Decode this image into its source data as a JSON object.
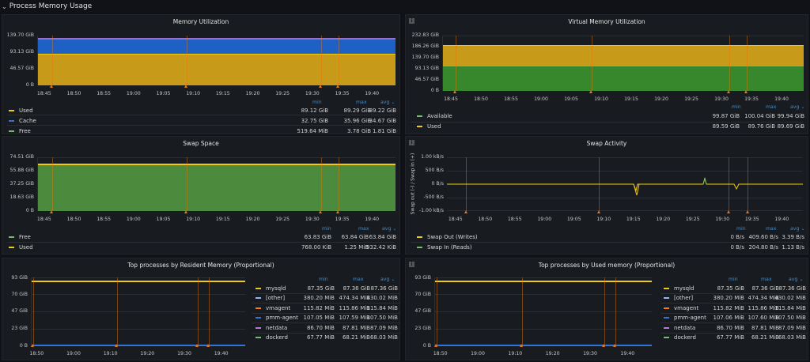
{
  "row": {
    "title": "Process Memory Usage"
  },
  "colors": {
    "green": "#73bf69",
    "yellow": "#f2cc0c",
    "blue": "#3274d9",
    "orange": "#ff780a",
    "darkgreen": "#37872d",
    "red": "#f2495c",
    "purple": "#b877d9",
    "annotation": "#e87511"
  },
  "panels": {
    "mem_util": {
      "title": "Memory Utilization",
      "yticks": [
        "139.70 GiB",
        "93.13 GiB",
        "46.57 GiB",
        "0 B"
      ],
      "xticks": [
        "18:45",
        "18:50",
        "18:55",
        "19:00",
        "19:05",
        "19:10",
        "19:15",
        "19:20",
        "19:25",
        "19:30",
        "19:35",
        "19:40"
      ],
      "legend_headers": [
        "min",
        "max",
        "avg ⌄"
      ],
      "legend": [
        {
          "name": "Used",
          "min": "89.12 GiB",
          "max": "89.29 GiB",
          "avg": "89.22 GiB"
        },
        {
          "name": "Cache",
          "min": "32.75 GiB",
          "max": "35.96 GiB",
          "avg": "34.67 GiB"
        },
        {
          "name": "Free",
          "min": "519.64 MiB",
          "max": "3.78 GiB",
          "avg": "1.81 GiB"
        }
      ]
    },
    "virt_util": {
      "title": "Virtual Memory Utilization",
      "yticks": [
        "232.83 GiB",
        "186.26 GiB",
        "139.70 GiB",
        "93.13 GiB",
        "46.57 GiB",
        "0 B"
      ],
      "xticks": [
        "18:45",
        "18:50",
        "18:55",
        "19:00",
        "19:05",
        "19:10",
        "19:15",
        "19:20",
        "19:25",
        "19:30",
        "19:35",
        "19:40"
      ],
      "legend_headers": [
        "min",
        "max",
        "avg ⌄"
      ],
      "legend": [
        {
          "name": "Available",
          "min": "99.87 GiB",
          "max": "100.04 GiB",
          "avg": "99.94 GiB"
        },
        {
          "name": "Used",
          "min": "89.59 GiB",
          "max": "89.76 GiB",
          "avg": "89.69 GiB"
        }
      ]
    },
    "swap_space": {
      "title": "Swap Space",
      "yticks": [
        "74.51 GiB",
        "55.88 GiB",
        "37.25 GiB",
        "18.63 GiB",
        "0 B"
      ],
      "xticks": [
        "18:45",
        "18:50",
        "18:55",
        "19:00",
        "19:05",
        "19:10",
        "19:15",
        "19:20",
        "19:25",
        "19:30",
        "19:35",
        "19:40"
      ],
      "legend_headers": [
        "min",
        "max",
        "avg ⌄"
      ],
      "legend": [
        {
          "name": "Free",
          "min": "63.83 GiB",
          "max": "63.84 GiB",
          "avg": "63.84 GiB"
        },
        {
          "name": "Used",
          "min": "768.00 KiB",
          "max": "1.25 MiB",
          "avg": "932.42 KiB"
        }
      ]
    },
    "swap_activity": {
      "title": "Swap Activity",
      "ylabel": "Swap out (-) / Swap in (+)",
      "yticks": [
        "1.00 kB/s",
        "500 B/s",
        "0 B/s",
        "-500 B/s",
        "-1.00 kB/s"
      ],
      "xticks": [
        "18:45",
        "18:50",
        "18:55",
        "19:00",
        "19:05",
        "19:10",
        "19:15",
        "19:20",
        "19:25",
        "19:30",
        "19:35",
        "19:40"
      ],
      "legend_headers": [
        "min",
        "max",
        "avg ⌄"
      ],
      "legend": [
        {
          "name": "Swap Out (Writes)",
          "min": "0 B/s",
          "max": "409.60 B/s",
          "avg": "3.39 B/s"
        },
        {
          "name": "Swap In (Reads)",
          "min": "0 B/s",
          "max": "204.80 B/s",
          "avg": "1.13 B/s"
        }
      ]
    },
    "top_resident": {
      "title": "Top processes by Resident Memory (Proportional)",
      "yticks": [
        "93 GiB",
        "70 GiB",
        "47 GiB",
        "23 GiB",
        "0 B"
      ],
      "xticks": [
        "18:50",
        "19:00",
        "19:10",
        "19:20",
        "19:30",
        "19:40"
      ],
      "legend_headers": [
        "min",
        "max",
        "avg ⌄"
      ],
      "legend": [
        {
          "name": "mysqld",
          "min": "87.35 GiB",
          "max": "87.36 GiB",
          "avg": "87.36 GiB"
        },
        {
          "name": "[other]",
          "min": "380.20 MiB",
          "max": "474.34 MiB",
          "avg": "430.02 MiB"
        },
        {
          "name": "vmagent",
          "min": "115.82 MiB",
          "max": "115.86 MiB",
          "avg": "115.84 MiB"
        },
        {
          "name": "pmm-agent",
          "min": "107.05 MiB",
          "max": "107.59 MiB",
          "avg": "107.50 MiB"
        },
        {
          "name": "netdata",
          "min": "86.70 MiB",
          "max": "87.81 MiB",
          "avg": "87.09 MiB"
        },
        {
          "name": "dockerd",
          "min": "67.77 MiB",
          "max": "68.21 MiB",
          "avg": "68.03 MiB"
        }
      ]
    },
    "top_used": {
      "title": "Top processes by Used memory (Proportional)",
      "yticks": [
        "93 GiB",
        "70 GiB",
        "47 GiB",
        "23 GiB",
        "0 B"
      ],
      "xticks": [
        "18:50",
        "19:00",
        "19:10",
        "19:20",
        "19:30",
        "19:40"
      ],
      "legend_headers": [
        "min",
        "max",
        "avg ⌄"
      ],
      "legend": [
        {
          "name": "mysqld",
          "min": "87.35 GiB",
          "max": "87.36 GiB",
          "avg": "87.36 GiB"
        },
        {
          "name": "[other]",
          "min": "380.20 MiB",
          "max": "474.34 MiB",
          "avg": "430.02 MiB"
        },
        {
          "name": "vmagent",
          "min": "115.82 MiB",
          "max": "115.86 MiB",
          "avg": "115.84 MiB"
        },
        {
          "name": "pmm-agent",
          "min": "107.06 MiB",
          "max": "107.60 MiB",
          "avg": "107.50 MiB"
        },
        {
          "name": "netdata",
          "min": "86.70 MiB",
          "max": "87.81 MiB",
          "avg": "87.09 MiB"
        },
        {
          "name": "dockerd",
          "min": "67.77 MiB",
          "max": "68.21 MiB",
          "avg": "68.03 MiB"
        }
      ]
    }
  }
}
